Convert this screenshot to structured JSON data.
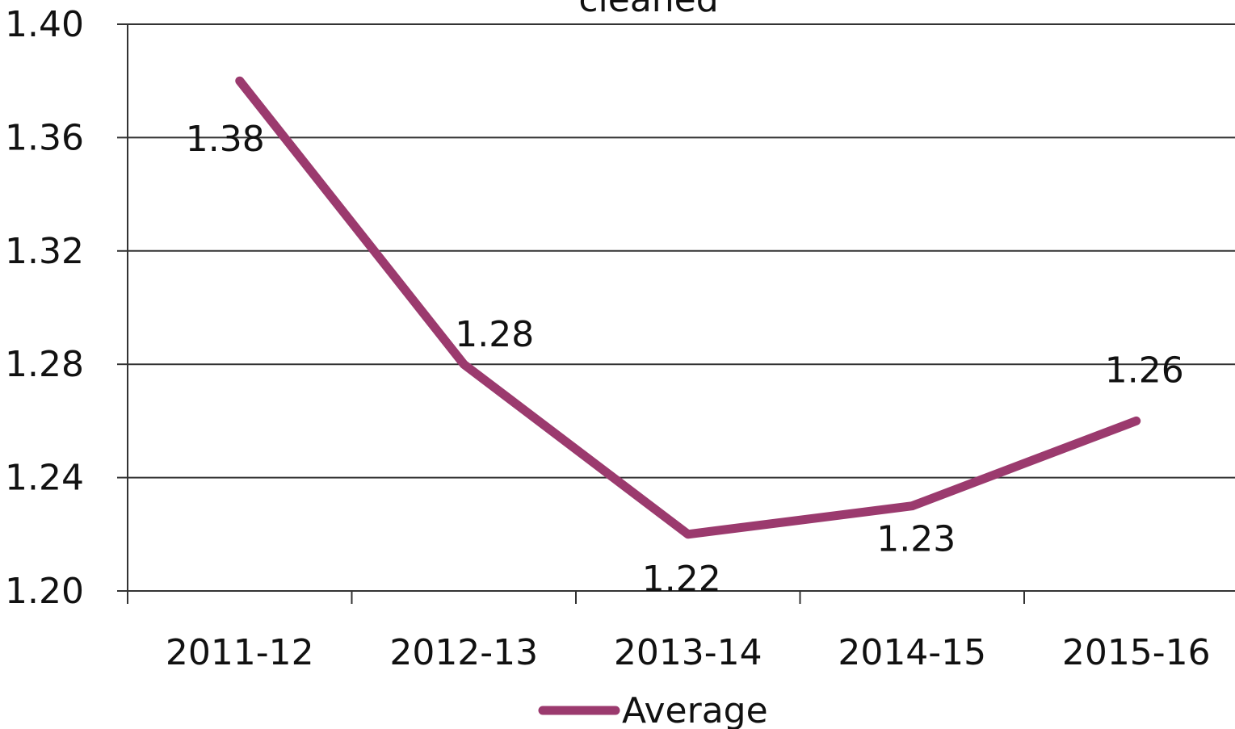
{
  "chart_data": {
    "type": "line",
    "title": "cleaned",
    "categories": [
      "2011-12",
      "2012-13",
      "2013-14",
      "2014-15",
      "2015-16"
    ],
    "series": [
      {
        "name": "Average",
        "color": "#9b3a6e",
        "values": [
          1.38,
          1.28,
          1.22,
          1.23,
          1.26
        ]
      }
    ],
    "ylim": [
      1.2,
      1.4
    ],
    "yticks": [
      {
        "value": 1.2,
        "label": "1.20"
      },
      1.24,
      1.28,
      1.32,
      1.36,
      {
        "value": 1.4,
        "label": "1.40"
      }
    ],
    "grid": true,
    "legend": "bottom"
  }
}
